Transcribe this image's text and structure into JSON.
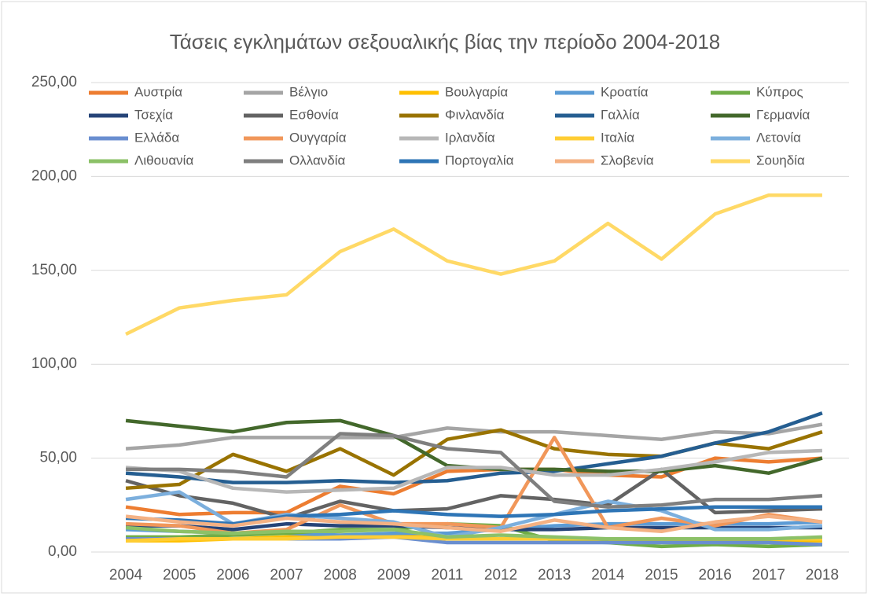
{
  "chart_data": {
    "type": "line",
    "title": "Τάσεις εγκλημάτων σεξουαλικής βίας την περίοδο 2004-2018",
    "categories": [
      "2004",
      "2005",
      "2006",
      "2007",
      "2008",
      "2009",
      "2011",
      "2012",
      "2013",
      "2014",
      "2015",
      "2016",
      "2017",
      "2018"
    ],
    "ylim": [
      0,
      250
    ],
    "yticks": [
      {
        "value": 0,
        "label": "0,00"
      },
      {
        "value": 50,
        "label": "50,00"
      },
      {
        "value": 100,
        "label": "100,00"
      },
      {
        "value": 150,
        "label": "150,00"
      },
      {
        "value": 200,
        "label": "200,00"
      },
      {
        "value": 250,
        "label": "250,00"
      }
    ],
    "grid": true,
    "series": [
      {
        "name": "Αυστρία",
        "color": "#ed7d31",
        "values": [
          24,
          20,
          21,
          21,
          35,
          31,
          43,
          44,
          44,
          41,
          40,
          50,
          48,
          50
        ]
      },
      {
        "name": "Βέλγιο",
        "color": "#a5a5a5",
        "values": [
          55,
          57,
          61,
          61,
          61,
          61,
          66,
          64,
          64,
          62,
          60,
          64,
          63,
          68
        ]
      },
      {
        "name": "Βουλγαρία",
        "color": "#ffc000",
        "values": [
          6,
          6,
          7,
          8,
          9,
          9,
          7,
          7,
          7,
          6,
          6,
          6,
          6,
          6
        ]
      },
      {
        "name": "Κροατία",
        "color": "#5b9bd5",
        "values": [
          12,
          11,
          10,
          10,
          9,
          10,
          10,
          12,
          14,
          15,
          15,
          15,
          15,
          16
        ]
      },
      {
        "name": "Κύπρος",
        "color": "#70ad47",
        "values": [
          8,
          8,
          9,
          10,
          12,
          12,
          15,
          14,
          6,
          5,
          3,
          4,
          3,
          4
        ]
      },
      {
        "name": "Τσεχία",
        "color": "#264478",
        "values": [
          14,
          14,
          12,
          15,
          14,
          14,
          13,
          12,
          12,
          13,
          13,
          13,
          13,
          13
        ]
      },
      {
        "name": "Εσθονία",
        "color": "#636363",
        "values": [
          38,
          30,
          26,
          18,
          27,
          22,
          23,
          30,
          28,
          25,
          44,
          21,
          22,
          23
        ]
      },
      {
        "name": "Φινλανδία",
        "color": "#997300",
        "values": [
          34,
          36,
          52,
          43,
          55,
          41,
          60,
          65,
          55,
          52,
          51,
          58,
          55,
          64
        ]
      },
      {
        "name": "Γαλλία",
        "color": "#255e91",
        "values": [
          42,
          40,
          37,
          37,
          38,
          37,
          38,
          42,
          43,
          47,
          51,
          58,
          64,
          74
        ]
      },
      {
        "name": "Γερμανία",
        "color": "#43682b",
        "values": [
          70,
          67,
          64,
          69,
          70,
          62,
          46,
          44,
          44,
          43,
          43,
          46,
          42,
          50
        ]
      },
      {
        "name": "Ελλάδα",
        "color": "#698ed0",
        "values": [
          7,
          7,
          7,
          7,
          7,
          8,
          5,
          5,
          5,
          5,
          5,
          5,
          5,
          4
        ]
      },
      {
        "name": "Ουγγαρία",
        "color": "#f1975a",
        "values": [
          15,
          14,
          10,
          12,
          25,
          15,
          15,
          13,
          61,
          13,
          18,
          14,
          20,
          16
        ]
      },
      {
        "name": "Ιρλανδία",
        "color": "#b7b7b7",
        "values": [
          45,
          43,
          34,
          32,
          33,
          34,
          45,
          45,
          41,
          41,
          44,
          48,
          53,
          54
        ]
      },
      {
        "name": "Ιταλία",
        "color": "#ffcd33",
        "values": [
          6,
          7,
          7,
          7,
          8,
          8,
          7,
          7,
          7,
          7,
          7,
          7,
          7,
          7
        ]
      },
      {
        "name": "Λετονία",
        "color": "#7cafdd",
        "values": [
          28,
          32,
          15,
          20,
          18,
          16,
          8,
          13,
          20,
          27,
          22,
          12,
          12,
          14
        ]
      },
      {
        "name": "Λιθουανία",
        "color": "#8cc168",
        "values": [
          13,
          11,
          10,
          11,
          11,
          12,
          8,
          9,
          8,
          7,
          7,
          7,
          7,
          8
        ]
      },
      {
        "name": "Ολλανδία",
        "color": "#7f7f7f",
        "values": [
          44,
          44,
          43,
          40,
          63,
          62,
          55,
          53,
          27,
          24,
          25,
          28,
          28,
          30
        ]
      },
      {
        "name": "Πορτογαλία",
        "color": "#2e75b6",
        "values": [
          18,
          17,
          15,
          19,
          20,
          22,
          20,
          19,
          20,
          22,
          23,
          24,
          24,
          24
        ]
      },
      {
        "name": "Σλοβενία",
        "color": "#f4b183",
        "values": [
          19,
          16,
          14,
          18,
          16,
          15,
          13,
          11,
          17,
          13,
          11,
          16,
          19,
          16
        ]
      },
      {
        "name": "Σουηδία",
        "color": "#ffd966",
        "values": [
          116,
          130,
          134,
          137,
          160,
          172,
          155,
          148,
          155,
          175,
          156,
          180,
          190,
          190
        ]
      }
    ]
  }
}
